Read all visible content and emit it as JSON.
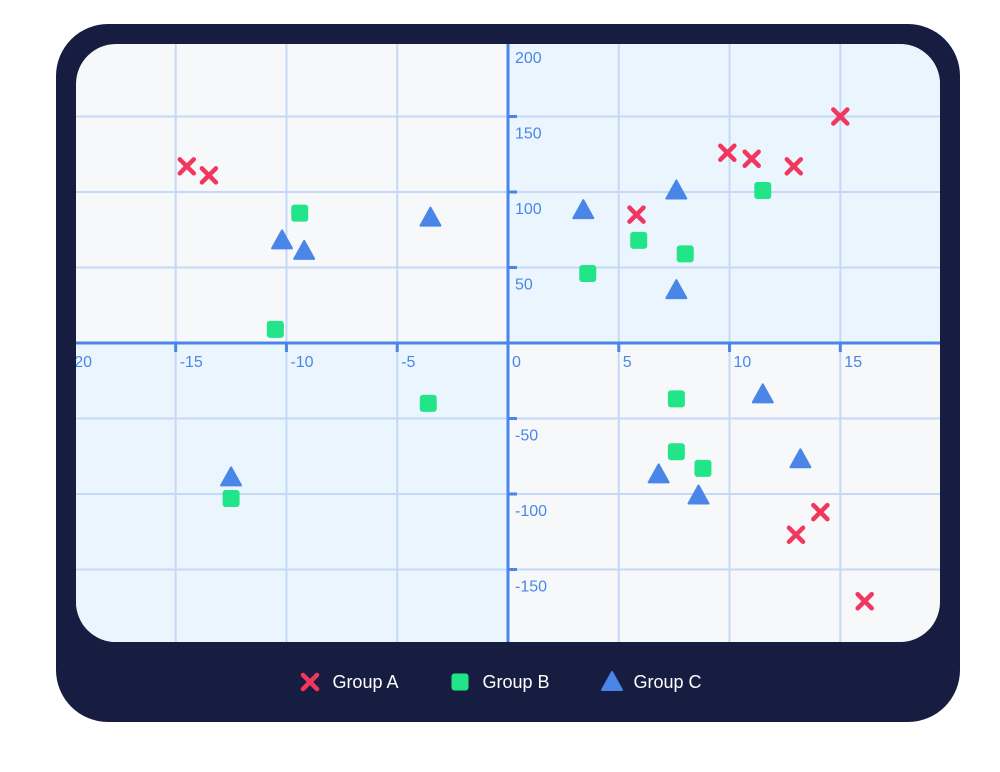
{
  "chart_data": {
    "type": "scatter",
    "xlim": [
      -19.5,
      19.5
    ],
    "ylim": [
      -198,
      198
    ],
    "x_ticks": [
      -20,
      -15,
      -10,
      -5,
      0,
      5,
      10,
      15
    ],
    "x_tick_labels": [
      "-20",
      "-15",
      "-10",
      "-5",
      "0",
      "5",
      "10",
      "15"
    ],
    "y_ticks": [
      -150,
      -100,
      -50,
      50,
      100,
      150,
      200
    ],
    "y_tick_labels": [
      "-150",
      "-100",
      "-50",
      "50",
      "100",
      "150",
      "200"
    ],
    "grid": true,
    "legend_position": "bottom-center",
    "series": [
      {
        "name": "Group A",
        "marker": "x",
        "color": "#f2375f",
        "points": [
          [
            -14.5,
            117
          ],
          [
            -13.5,
            111
          ],
          [
            5.8,
            85
          ],
          [
            9.9,
            126
          ],
          [
            11,
            122
          ],
          [
            12.9,
            117
          ],
          [
            15,
            150
          ],
          [
            13,
            -127
          ],
          [
            14.1,
            -112
          ],
          [
            16.1,
            -171
          ]
        ]
      },
      {
        "name": "Group B",
        "marker": "square",
        "color": "#22e58a",
        "points": [
          [
            -9.4,
            86
          ],
          [
            -10.5,
            9
          ],
          [
            3.6,
            46
          ],
          [
            5.9,
            68
          ],
          [
            8,
            59
          ],
          [
            11.5,
            101
          ],
          [
            -3.6,
            -40
          ],
          [
            7.6,
            -37
          ],
          [
            7.6,
            -72
          ],
          [
            8.8,
            -83
          ],
          [
            -12.5,
            -103
          ]
        ]
      },
      {
        "name": "Group C",
        "marker": "triangle",
        "color": "#4a86e8",
        "points": [
          [
            -10.2,
            68
          ],
          [
            -9.2,
            61
          ],
          [
            -3.5,
            83
          ],
          [
            3.4,
            88
          ],
          [
            7.6,
            101
          ],
          [
            7.6,
            35
          ],
          [
            11.5,
            -34
          ],
          [
            13.2,
            -77
          ],
          [
            6.8,
            -87
          ],
          [
            8.6,
            -101
          ],
          [
            -12.5,
            -89
          ]
        ]
      }
    ]
  }
}
